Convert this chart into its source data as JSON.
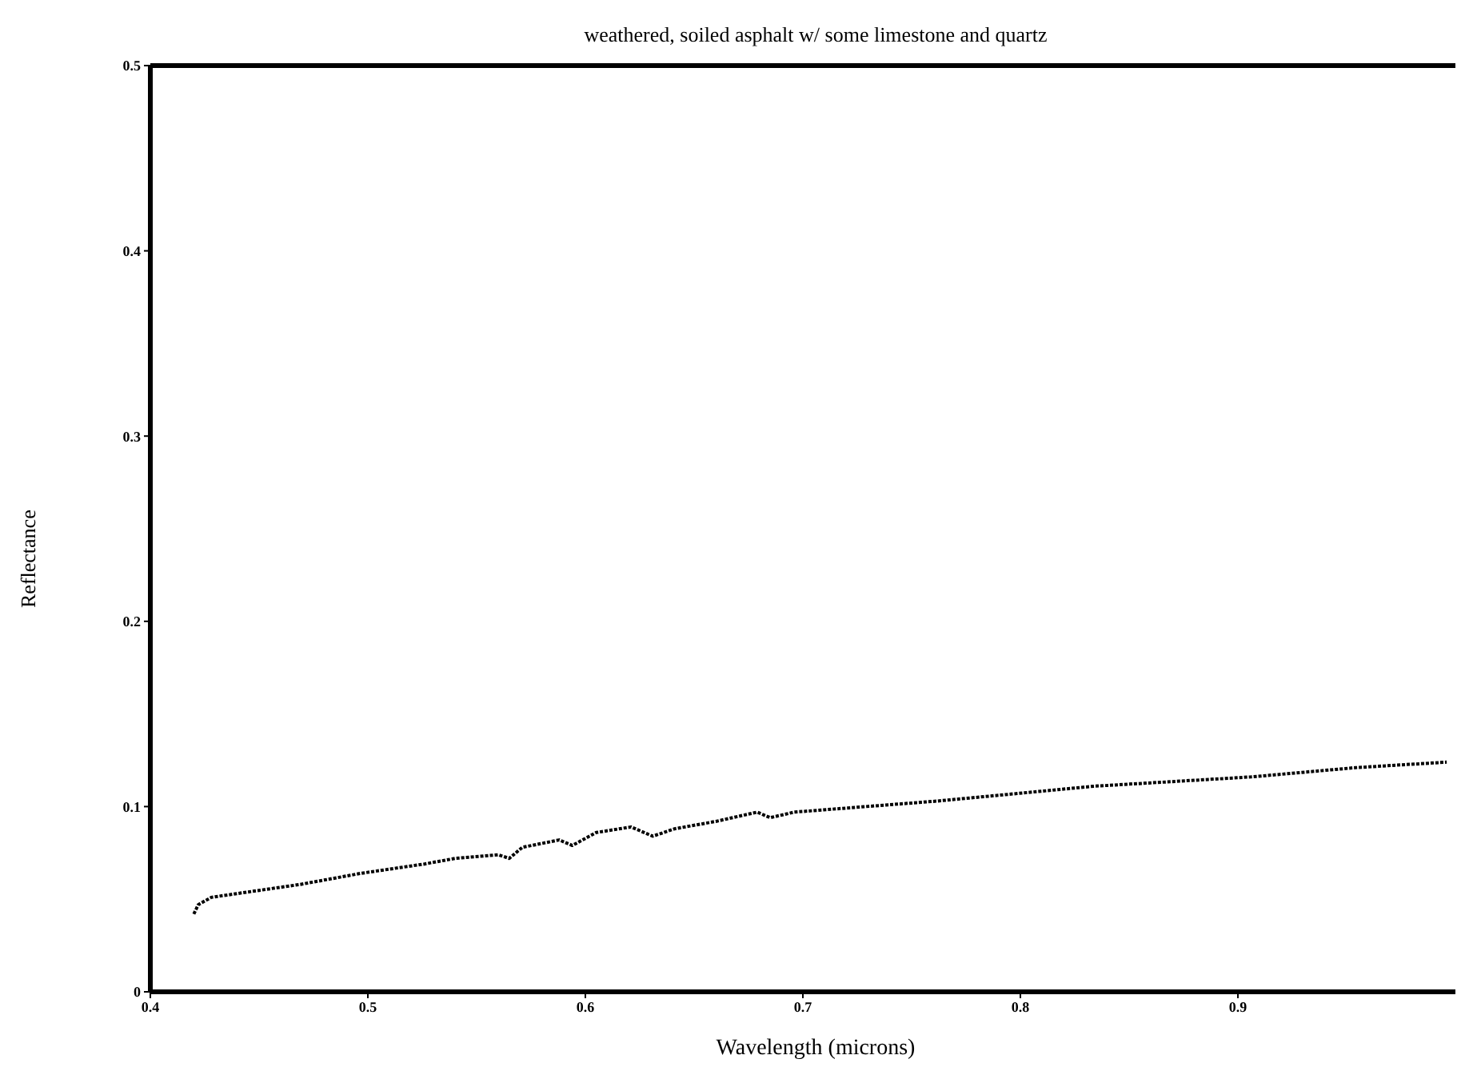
{
  "chart_data": {
    "type": "line",
    "title": "weathered, soiled asphalt w/ some limestone and quartz",
    "xlabel": "Wavelength (microns)",
    "ylabel": "Reflectance",
    "x": [
      0.42,
      0.422,
      0.428,
      0.469,
      0.497,
      0.526,
      0.54,
      0.56,
      0.565,
      0.571,
      0.588,
      0.594,
      0.605,
      0.621,
      0.631,
      0.641,
      0.66,
      0.679,
      0.685,
      0.696,
      0.762,
      0.834,
      0.906,
      0.954,
      0.996
    ],
    "series": [
      {
        "color": "#000000",
        "values": [
          0.042,
          0.047,
          0.051,
          0.058,
          0.064,
          0.069,
          0.072,
          0.074,
          0.072,
          0.078,
          0.082,
          0.079,
          0.086,
          0.089,
          0.084,
          0.088,
          0.092,
          0.097,
          0.094,
          0.097,
          0.103,
          0.111,
          0.116,
          0.121,
          0.124
        ]
      }
    ],
    "xlim": [
      0.4,
      1.0
    ],
    "xticks": [
      0.4,
      0.5,
      0.6,
      0.7,
      0.8,
      0.9
    ],
    "ylim": [
      0,
      0.5
    ],
    "yticks": [
      0,
      0.1,
      0.2,
      0.3,
      0.4,
      0.5
    ],
    "grid": false,
    "legend": false,
    "marker": "none",
    "line_style": "dotted"
  }
}
